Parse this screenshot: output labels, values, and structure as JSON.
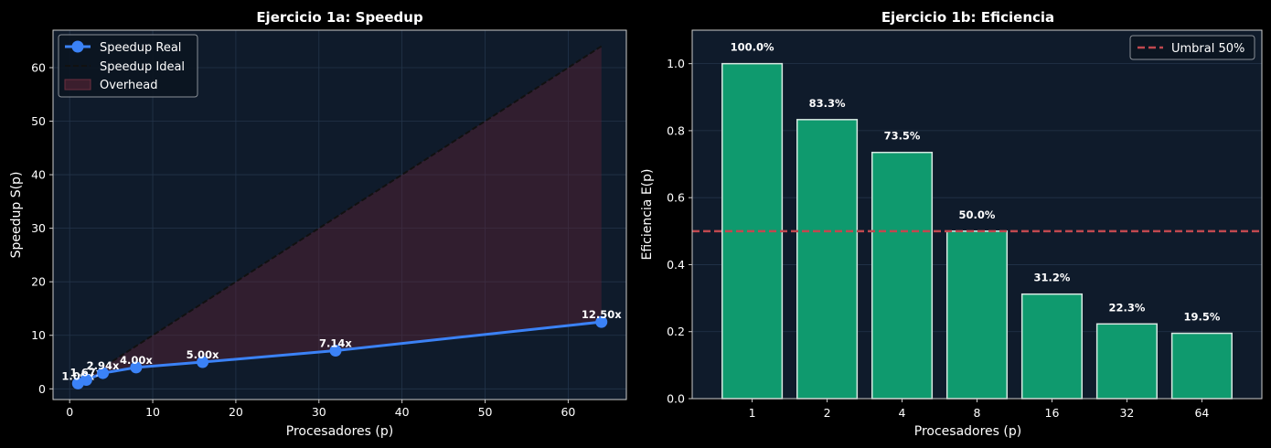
{
  "chart_data": [
    {
      "type": "line",
      "title": "Ejercicio 1a: Speedup",
      "xlabel": "Procesadores (p)",
      "ylabel": "Speedup S(p)",
      "xlim": [
        -2,
        67
      ],
      "ylim": [
        -2,
        67
      ],
      "xticks": [
        0,
        10,
        20,
        30,
        40,
        50,
        60
      ],
      "yticks": [
        0,
        10,
        20,
        30,
        40,
        50,
        60
      ],
      "grid": true,
      "legend_position": "top-left",
      "series": [
        {
          "name": "Speedup Real",
          "x": [
            1,
            2,
            4,
            8,
            16,
            32,
            64
          ],
          "y": [
            1.0,
            1.67,
            2.94,
            4.0,
            5.0,
            7.14,
            12.5
          ],
          "labels": [
            "1.00x",
            "1.67x",
            "2.94x",
            "4.00x",
            "5.00x",
            "7.14x",
            "12.50x"
          ],
          "color": "#3b82f6"
        },
        {
          "name": "Speedup Ideal",
          "x": [
            1,
            2,
            4,
            8,
            16,
            32,
            64
          ],
          "y": [
            1,
            2,
            4,
            8,
            16,
            32,
            64
          ],
          "color": "#111111"
        }
      ],
      "fill": {
        "name": "Overhead",
        "color": "#5b2436"
      }
    },
    {
      "type": "bar",
      "title": "Ejercicio 1b: Eficiencia",
      "xlabel": "Procesadores (p)",
      "ylabel": "Eficiencia E(p)",
      "categories": [
        "1",
        "2",
        "4",
        "8",
        "16",
        "32",
        "64"
      ],
      "values": [
        1.0,
        0.833,
        0.735,
        0.5,
        0.312,
        0.223,
        0.195
      ],
      "labels": [
        "100.0%",
        "83.3%",
        "73.5%",
        "50.0%",
        "31.2%",
        "22.3%",
        "19.5%"
      ],
      "ylim": [
        0,
        1.1
      ],
      "yticks": [
        "0.0",
        "0.2",
        "0.4",
        "0.6",
        "0.8",
        "1.0"
      ],
      "bar_color": "#0f9a6e",
      "grid": true,
      "threshold": {
        "name": "Umbral 50%",
        "value": 0.5,
        "color": "#c0484f"
      },
      "legend_position": "top-right"
    }
  ]
}
